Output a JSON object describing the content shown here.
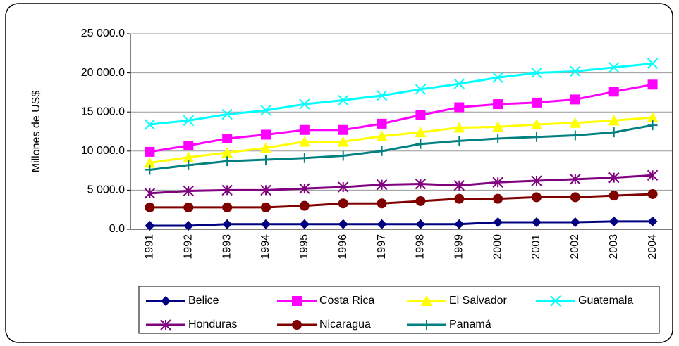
{
  "chart_data": {
    "type": "line",
    "y_label": "Millones de US$",
    "categories": [
      "1991",
      "1992",
      "1993",
      "1994",
      "1995",
      "1996",
      "1997",
      "1998",
      "1999",
      "2000",
      "2001",
      "2002",
      "2003",
      "2004"
    ],
    "series": [
      {
        "name": "Belice",
        "color": "#000080",
        "marker": "diamond",
        "values": [
          450,
          450,
          650,
          650,
          650,
          650,
          650,
          650,
          650,
          900,
          900,
          900,
          1000,
          1000
        ]
      },
      {
        "name": "Costa Rica",
        "color": "#ff00ff",
        "marker": "square",
        "values": [
          9900,
          10700,
          11600,
          12100,
          12700,
          12700,
          13500,
          14600,
          15600,
          16000,
          16200,
          16600,
          17600,
          18500
        ]
      },
      {
        "name": "El Salvador",
        "color": "#ffff00",
        "marker": "triangle",
        "values": [
          8500,
          9200,
          9800,
          10400,
          11200,
          11200,
          11900,
          12400,
          13000,
          13100,
          13400,
          13600,
          13900,
          14300
        ]
      },
      {
        "name": "Guatemala",
        "color": "#00ffff",
        "marker": "x",
        "values": [
          13400,
          13900,
          14700,
          15200,
          16000,
          16500,
          17100,
          17900,
          18600,
          19400,
          20000,
          20200,
          20700,
          21200
        ]
      },
      {
        "name": "Honduras",
        "color": "#800080",
        "marker": "asterisk",
        "values": [
          4600,
          4900,
          5000,
          5000,
          5200,
          5400,
          5700,
          5800,
          5600,
          6000,
          6200,
          6400,
          6600,
          6900
        ]
      },
      {
        "name": "Nicaragua",
        "color": "#800000",
        "marker": "circle",
        "values": [
          2800,
          2800,
          2800,
          2800,
          3000,
          3300,
          3300,
          3600,
          3900,
          3900,
          4100,
          4100,
          4300,
          4500
        ]
      },
      {
        "name": "Panamá",
        "color": "#008080",
        "marker": "plus",
        "values": [
          7600,
          8200,
          8700,
          8900,
          9100,
          9400,
          10000,
          10900,
          11300,
          11600,
          11800,
          12000,
          12400,
          13300
        ]
      }
    ],
    "ylim": [
      0,
      25000
    ],
    "yticks": [
      {
        "value": 0,
        "label": "0.0"
      },
      {
        "value": 5000,
        "label": "5 000.0"
      },
      {
        "value": 10000,
        "label": "10 000.0"
      },
      {
        "value": 15000,
        "label": "15 000.0"
      },
      {
        "value": 20000,
        "label": "20 000.0"
      },
      {
        "value": 25000,
        "label": "25 000.0"
      }
    ],
    "grid": true,
    "legend": "bottom"
  }
}
